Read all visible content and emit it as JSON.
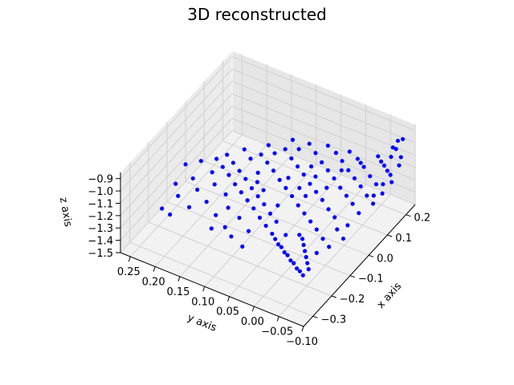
{
  "chart_data": {
    "type": "scatter",
    "projection": "3d",
    "title": "3D reconstructed",
    "xlabel": "x axis",
    "ylabel": "y axis",
    "zlabel": "z axis",
    "xlim": [
      -0.35,
      0.25
    ],
    "ylim": [
      -0.1,
      0.27
    ],
    "zlim": [
      -1.5,
      -0.85
    ],
    "x_ticks": [
      "−0.3",
      "−0.2",
      "−0.1",
      "0.0",
      "0.1",
      "0.2"
    ],
    "y_ticks": [
      "−0.10",
      "−0.05",
      "0.00",
      "0.05",
      "0.10",
      "0.15",
      "0.20",
      "0.25"
    ],
    "z_ticks": [
      "−1.5",
      "−1.4",
      "−1.3",
      "−1.2",
      "−1.1",
      "−1.0",
      "−0.9"
    ],
    "grid": true,
    "marker_color": "#0000ff",
    "series": [
      {
        "points": [
          [
            -0.3,
            -0.08,
            -1.2
          ],
          [
            -0.29,
            -0.07,
            -1.2
          ],
          [
            -0.28,
            -0.06,
            -1.21
          ],
          [
            -0.27,
            -0.05,
            -1.2
          ],
          [
            -0.26,
            -0.04,
            -1.21
          ],
          [
            -0.25,
            -0.03,
            -1.2
          ],
          [
            -0.24,
            -0.02,
            -1.21
          ],
          [
            -0.23,
            -0.01,
            -1.2
          ],
          [
            -0.22,
            0.0,
            -1.21
          ],
          [
            -0.21,
            0.01,
            -1.2
          ],
          [
            -0.27,
            -0.08,
            -1.2
          ],
          [
            -0.25,
            -0.07,
            -1.2
          ],
          [
            -0.23,
            -0.06,
            -1.2
          ],
          [
            -0.21,
            -0.05,
            -1.2
          ],
          [
            -0.19,
            -0.04,
            -1.2
          ],
          [
            -0.17,
            -0.03,
            -1.2
          ],
          [
            -0.2,
            0.02,
            -1.19
          ],
          [
            -0.18,
            0.04,
            -1.19
          ],
          [
            -0.16,
            0.06,
            -1.19
          ],
          [
            -0.14,
            0.08,
            -1.18
          ],
          [
            -0.12,
            0.1,
            -1.18
          ],
          [
            -0.1,
            0.12,
            -1.18
          ],
          [
            -0.08,
            0.14,
            -1.18
          ],
          [
            -0.06,
            0.16,
            -1.17
          ],
          [
            -0.04,
            0.18,
            -1.17
          ],
          [
            -0.02,
            0.2,
            -1.17
          ],
          [
            -0.15,
            0.03,
            -1.19
          ],
          [
            -0.13,
            0.05,
            -1.19
          ],
          [
            -0.11,
            0.07,
            -1.18
          ],
          [
            -0.09,
            0.09,
            -1.18
          ],
          [
            -0.07,
            0.11,
            -1.18
          ],
          [
            -0.05,
            0.13,
            -1.17
          ],
          [
            -0.03,
            0.15,
            -1.17
          ],
          [
            -0.01,
            0.17,
            -1.17
          ],
          [
            -0.1,
            -0.02,
            -1.19
          ],
          [
            -0.08,
            0.0,
            -1.19
          ],
          [
            -0.06,
            0.02,
            -1.19
          ],
          [
            -0.04,
            0.04,
            -1.18
          ],
          [
            -0.02,
            0.06,
            -1.18
          ],
          [
            0.0,
            0.08,
            -1.18
          ],
          [
            0.02,
            0.1,
            -1.17
          ],
          [
            0.04,
            0.12,
            -1.17
          ],
          [
            0.06,
            0.14,
            -1.17
          ],
          [
            -0.05,
            -0.05,
            -1.19
          ],
          [
            -0.03,
            -0.03,
            -1.19
          ],
          [
            -0.01,
            -0.01,
            -1.18
          ],
          [
            0.01,
            0.01,
            -1.18
          ],
          [
            0.03,
            0.03,
            -1.18
          ],
          [
            0.05,
            0.05,
            -1.17
          ],
          [
            0.07,
            0.07,
            -1.17
          ],
          [
            0.09,
            0.09,
            -1.17
          ],
          [
            0.11,
            0.11,
            -1.16
          ],
          [
            0.0,
            -0.08,
            -1.19
          ],
          [
            0.02,
            -0.06,
            -1.18
          ],
          [
            0.04,
            -0.04,
            -1.18
          ],
          [
            0.06,
            -0.02,
            -1.18
          ],
          [
            0.08,
            0.0,
            -1.17
          ],
          [
            0.1,
            0.02,
            -1.17
          ],
          [
            0.12,
            0.04,
            -1.17
          ],
          [
            0.14,
            0.06,
            -1.16
          ],
          [
            0.05,
            -0.09,
            -1.18
          ],
          [
            0.07,
            -0.07,
            -1.18
          ],
          [
            0.09,
            -0.05,
            -1.17
          ],
          [
            0.11,
            -0.03,
            -1.17
          ],
          [
            0.13,
            -0.01,
            -1.17
          ],
          [
            0.15,
            0.01,
            -1.16
          ],
          [
            0.17,
            0.03,
            -1.16
          ],
          [
            0.1,
            -0.09,
            -1.18
          ],
          [
            0.12,
            -0.07,
            -1.17
          ],
          [
            0.14,
            -0.05,
            -1.17
          ],
          [
            0.16,
            -0.03,
            -1.16
          ],
          [
            0.18,
            -0.01,
            -1.16
          ],
          [
            0.19,
            0.01,
            -1.15
          ],
          [
            0.15,
            -0.09,
            -1.17
          ],
          [
            0.17,
            -0.08,
            -1.16
          ],
          [
            0.18,
            -0.07,
            -1.16
          ],
          [
            0.19,
            -0.06,
            -1.15
          ],
          [
            0.2,
            -0.05,
            -1.15
          ],
          [
            0.21,
            -0.04,
            -1.14
          ],
          [
            0.19,
            -0.09,
            -1.1
          ],
          [
            0.2,
            -0.09,
            -1.05
          ],
          [
            0.2,
            -0.08,
            -1.0
          ],
          [
            0.21,
            -0.08,
            -0.95
          ],
          [
            0.21,
            -0.09,
            -0.92
          ],
          [
            0.2,
            -0.07,
            -1.08
          ],
          [
            0.21,
            -0.07,
            -1.02
          ],
          [
            -0.12,
            -0.04,
            -1.19
          ],
          [
            -0.16,
            -0.02,
            -1.2
          ],
          [
            -0.18,
            0.0,
            -1.2
          ],
          [
            -0.14,
            -0.06,
            -1.2
          ],
          [
            -0.09,
            -0.07,
            -1.19
          ],
          [
            -0.11,
            -0.09,
            -1.2
          ],
          [
            -0.22,
            0.06,
            -1.2
          ],
          [
            -0.19,
            0.09,
            -1.19
          ],
          [
            -0.17,
            0.12,
            -1.19
          ],
          [
            -0.13,
            0.14,
            -1.18
          ],
          [
            -0.11,
            0.17,
            -1.18
          ],
          [
            -0.07,
            0.19,
            -1.18
          ],
          [
            -0.05,
            0.22,
            -1.17
          ],
          [
            -0.24,
            0.1,
            -1.2
          ],
          [
            -0.21,
            0.13,
            -1.2
          ],
          [
            -0.18,
            0.16,
            -1.19
          ],
          [
            -0.15,
            0.19,
            -1.19
          ],
          [
            -0.12,
            0.21,
            -1.18
          ],
          [
            -0.08,
            0.24,
            -1.18
          ],
          [
            -0.28,
            0.05,
            -1.21
          ],
          [
            -0.26,
            0.08,
            -1.21
          ],
          [
            -0.26,
            0.12,
            -1.21
          ],
          [
            -0.22,
            0.18,
            -1.2
          ],
          [
            -0.2,
            0.21,
            -1.19
          ],
          [
            -0.16,
            0.23,
            -1.19
          ],
          [
            0.03,
            0.15,
            -1.17
          ],
          [
            0.05,
            0.17,
            -1.16
          ],
          [
            0.01,
            0.19,
            -1.17
          ],
          [
            0.08,
            0.12,
            -1.16
          ],
          [
            0.1,
            0.14,
            -1.16
          ],
          [
            0.13,
            0.09,
            -1.16
          ],
          [
            0.15,
            0.11,
            -1.15
          ],
          [
            -0.02,
            0.02,
            -1.18
          ],
          [
            0.0,
            0.04,
            -1.18
          ],
          [
            0.04,
            0.0,
            -1.18
          ],
          [
            0.06,
            0.03,
            -1.17
          ],
          [
            0.09,
            0.05,
            -1.17
          ],
          [
            0.12,
            0.0,
            -1.17
          ],
          [
            -0.06,
            0.09,
            -1.18
          ],
          [
            -0.04,
            0.11,
            -1.18
          ],
          [
            -0.09,
            0.05,
            -1.19
          ],
          [
            -0.01,
            0.12,
            -1.17
          ],
          [
            0.02,
            0.07,
            -1.18
          ],
          [
            -0.27,
            0.2,
            -1.21
          ],
          [
            -0.26,
            0.22,
            -1.21
          ],
          [
            0.18,
            0.05,
            -1.15
          ],
          [
            0.16,
            0.08,
            -1.15
          ],
          [
            0.17,
            -0.02,
            -1.16
          ],
          [
            -0.2,
            -0.07,
            -1.2
          ],
          [
            -0.16,
            -0.08,
            -1.2
          ],
          [
            -0.06,
            -0.08,
            -1.19
          ],
          [
            0.08,
            -0.08,
            -1.18
          ],
          [
            0.13,
            -0.08,
            -1.17
          ]
        ]
      }
    ]
  }
}
